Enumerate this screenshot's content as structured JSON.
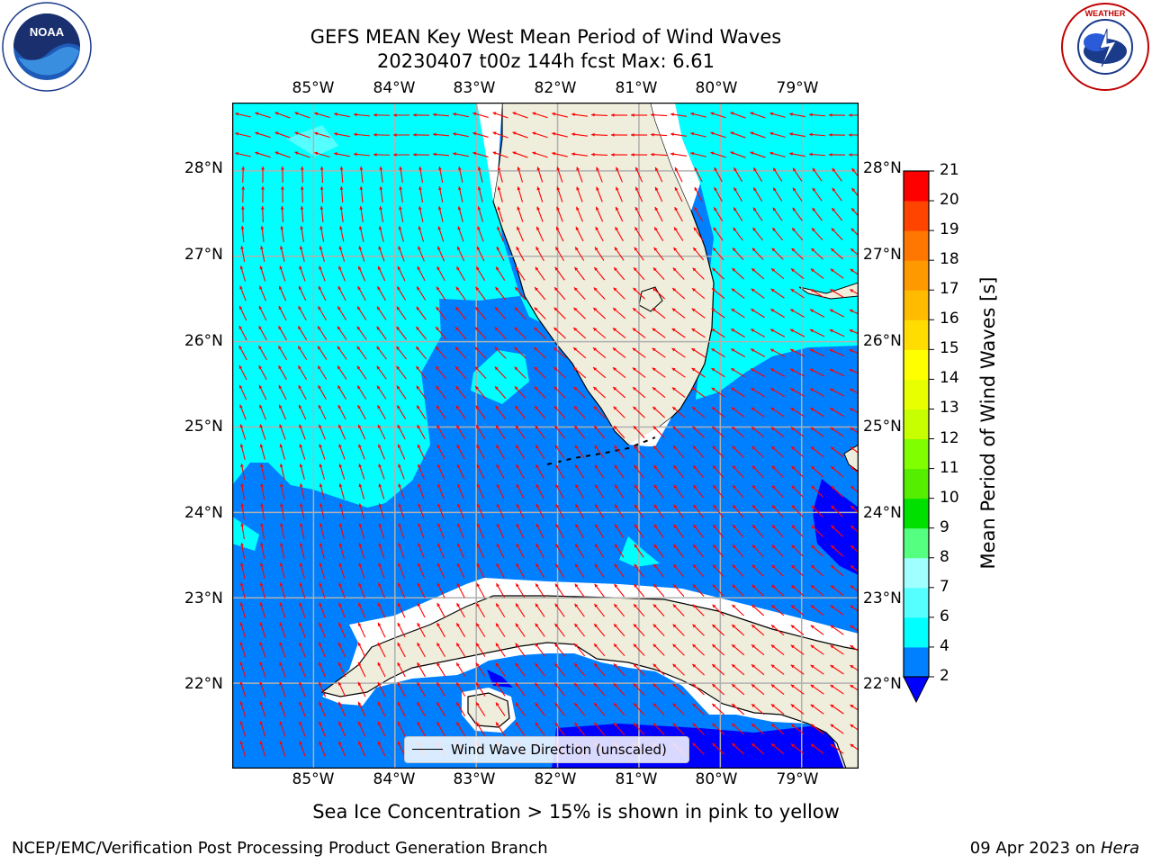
{
  "header": {
    "title_line1": "GEFS MEAN Key West Mean Period of Wind Waves",
    "title_line2": "20230407 t00z 144h fcst   Max: 6.61"
  },
  "logos": {
    "left": "NOAA",
    "left_ring_text": "NATIONAL OCEANIC AND ATMOSPHERIC ADMINISTRATION · U.S. DEPARTMENT OF COMMERCE",
    "right_ring_text": "NATIONAL WEATHER SERVICE"
  },
  "map": {
    "lon_labels": [
      "85°W",
      "84°W",
      "83°W",
      "82°W",
      "81°W",
      "80°W",
      "79°W"
    ],
    "lat_labels": [
      "28°N",
      "27°N",
      "26°N",
      "25°N",
      "24°N",
      "23°N",
      "22°N"
    ],
    "lon_range": [
      -86.0,
      -78.3
    ],
    "lat_range": [
      21.0,
      28.8
    ],
    "legend_label": "Wind Wave Direction (unscaled)",
    "colors": {
      "band_2_4": "#0080ff",
      "band_4_6": "#00ffff",
      "band_below_2": "#0000ff",
      "land": "#efeddc",
      "grid": "#b0b0b0",
      "arrow": "#ff0000"
    }
  },
  "colorbar": {
    "title": "Mean Period of Wind Waves [s]",
    "ticks": [
      "2",
      "4",
      "6",
      "7",
      "8",
      "9",
      "10",
      "11",
      "12",
      "13",
      "14",
      "15",
      "16",
      "17",
      "18",
      "19",
      "20",
      "21"
    ],
    "colors": [
      "#0080ff",
      "#00ffff",
      "#55ffff",
      "#a0ffff",
      "#55ff80",
      "#00e000",
      "#55ee00",
      "#80ff00",
      "#c8ff00",
      "#e8ff00",
      "#ffff00",
      "#ffdd00",
      "#ffbb00",
      "#ff9900",
      "#ff7700",
      "#ff4400",
      "#ff0000"
    ],
    "extend_color": "#0000ff"
  },
  "note": "Sea Ice Concentration > 15% is shown in pink to yellow",
  "footer": {
    "left": "NCEP/EMC/Verification Post Processing Product Generation Branch",
    "right_date": "09 Apr 2023 on",
    "right_host": "Hera"
  }
}
